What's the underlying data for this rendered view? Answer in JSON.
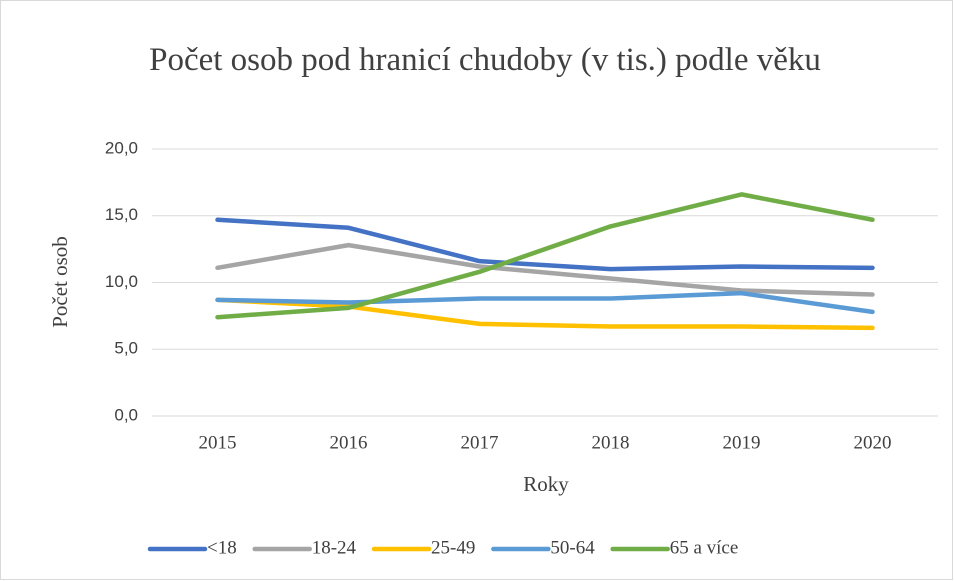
{
  "chart_data": {
    "type": "line",
    "title": "Počet osob pod hranicí chudoby (v tis.) podle věku",
    "x_label": "Roky",
    "y_label": "Počet osob",
    "categories": [
      "2015",
      "2016",
      "2017",
      "2018",
      "2019",
      "2020"
    ],
    "series": [
      {
        "name": "<18",
        "color": "#4472c4",
        "values": [
          14.7,
          14.1,
          11.6,
          11.0,
          11.2,
          11.1
        ]
      },
      {
        "name": "18-24",
        "color": "#a5a5a5",
        "values": [
          11.1,
          12.8,
          11.2,
          10.3,
          9.4,
          9.1
        ]
      },
      {
        "name": "25-49",
        "color": "#ffc000",
        "values": [
          8.7,
          8.2,
          6.9,
          6.7,
          6.7,
          6.6
        ]
      },
      {
        "name": "50-64",
        "color": "#5b9bd5",
        "values": [
          8.7,
          8.5,
          8.8,
          8.8,
          9.2,
          7.8
        ]
      },
      {
        "name": "65 a více",
        "color": "#70ad47",
        "values": [
          7.4,
          8.1,
          10.8,
          14.2,
          16.6,
          14.7
        ]
      }
    ],
    "ylim": [
      0,
      20
    ],
    "yticks": [
      {
        "value": 0,
        "label": "0,0"
      },
      {
        "value": 5,
        "label": "5,0"
      },
      {
        "value": 10,
        "label": "10,0"
      },
      {
        "value": 15,
        "label": "15,0"
      },
      {
        "value": 20,
        "label": "20,0"
      }
    ],
    "grid": true,
    "legend": "bottom"
  }
}
